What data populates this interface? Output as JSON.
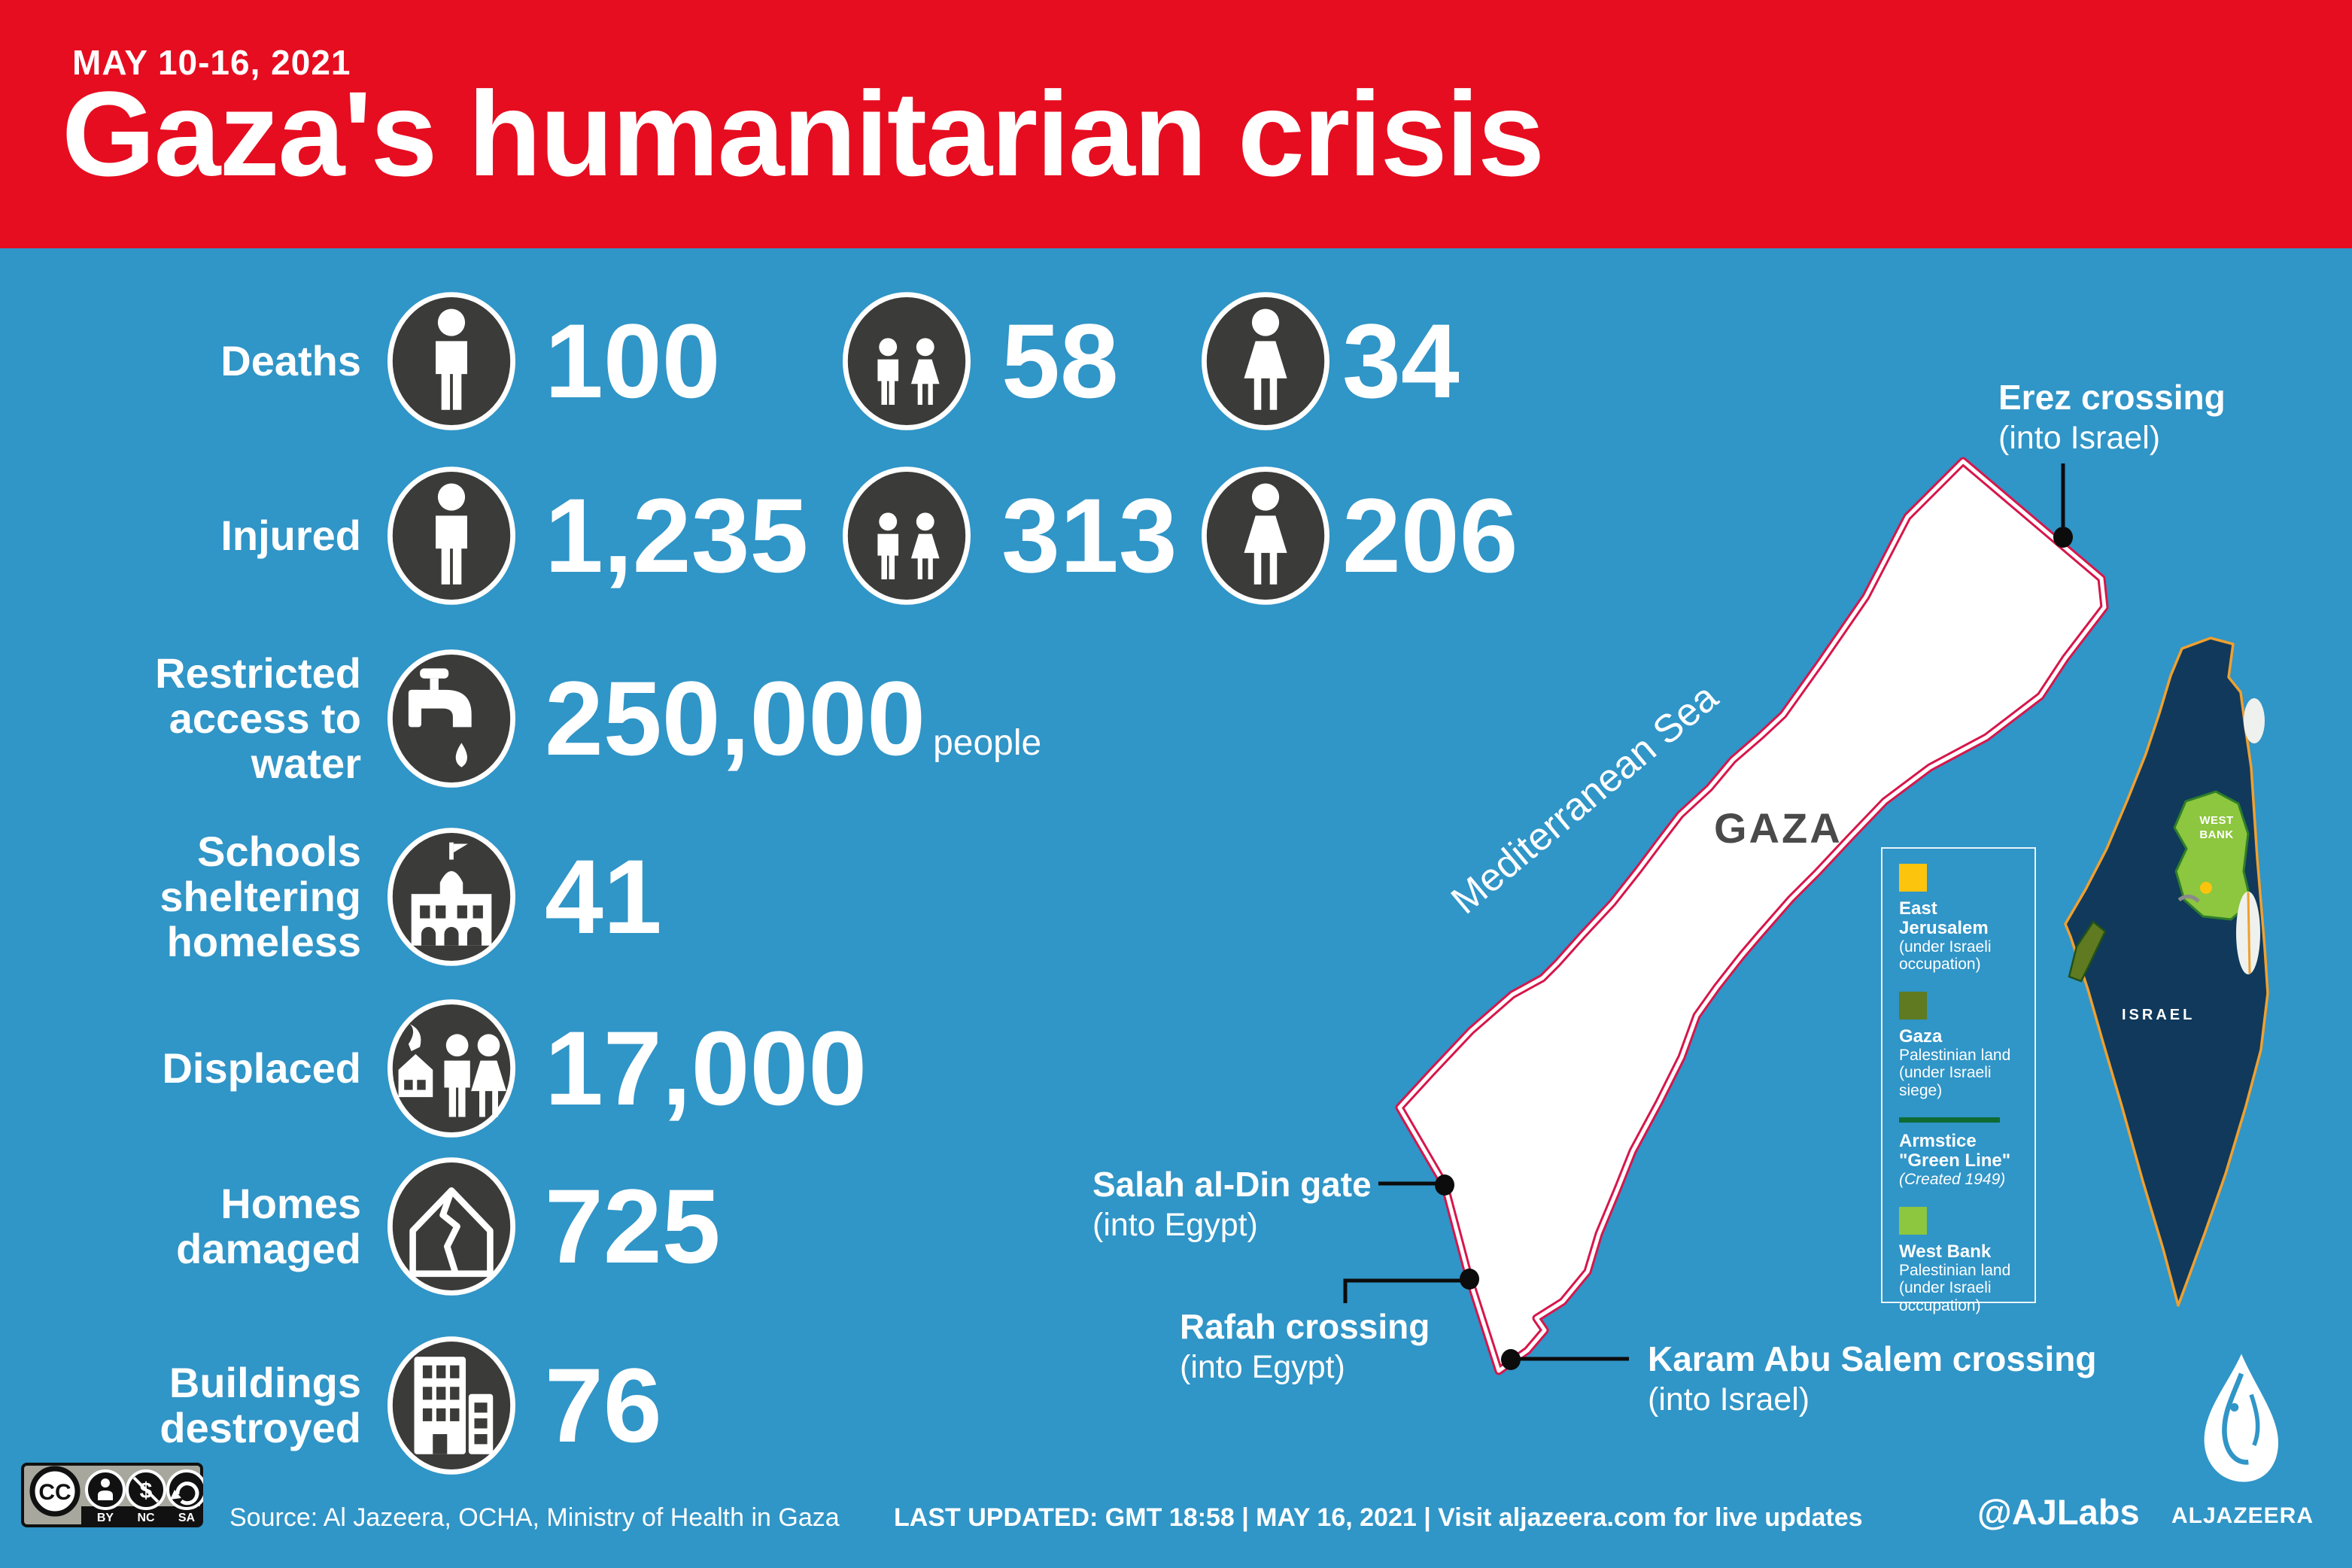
{
  "header": {
    "eyebrow": "MAY 10-16, 2021",
    "title": "Gaza's humanitarian crisis"
  },
  "stats": [
    {
      "label_lines": [
        "Deaths"
      ],
      "cells": [
        {
          "icon": "man-icon",
          "value": "100"
        },
        {
          "icon": "children-icon",
          "value": "58"
        },
        {
          "icon": "woman-icon",
          "value": "34"
        }
      ]
    },
    {
      "label_lines": [
        "Injured"
      ],
      "cells": [
        {
          "icon": "man-icon",
          "value": "1,235"
        },
        {
          "icon": "children-icon",
          "value": "313"
        },
        {
          "icon": "woman-icon",
          "value": "206"
        }
      ]
    },
    {
      "label_lines": [
        "Restricted",
        "access to",
        "water"
      ],
      "cells": [
        {
          "icon": "faucet-icon",
          "value": "250,000",
          "suffix": "people"
        }
      ]
    },
    {
      "label_lines": [
        "Schools",
        "sheltering",
        "homeless"
      ],
      "cells": [
        {
          "icon": "school-icon",
          "value": "41"
        }
      ]
    },
    {
      "label_lines": [
        "Displaced"
      ],
      "cells": [
        {
          "icon": "displaced-family-icon",
          "value": "17,000"
        }
      ]
    },
    {
      "label_lines": [
        "Homes",
        "damaged"
      ],
      "cells": [
        {
          "icon": "damaged-house-icon",
          "value": "725"
        }
      ]
    },
    {
      "label_lines": [
        "Buildings",
        "destroyed"
      ],
      "cells": [
        {
          "icon": "building-icon",
          "value": "76"
        }
      ]
    }
  ],
  "map": {
    "region_label": "GAZA",
    "sea_label": "Mediterranean Sea",
    "markers": [
      {
        "title": "Erez crossing",
        "sub": "(into Israel)"
      },
      {
        "title": "Salah al-Din gate",
        "sub": "(into Egypt)"
      },
      {
        "title": "Rafah crossing",
        "sub": "(into Egypt)"
      },
      {
        "title": "Karam Abu Salem crossing",
        "sub": "(into Israel)"
      }
    ],
    "legend": [
      {
        "swatch": "square",
        "color": "east_jerusalem",
        "title": "East Jerusalem",
        "desc": "(under Israeli occupation)"
      },
      {
        "swatch": "square",
        "color": "gaza_land",
        "title": "Gaza",
        "desc": "Palestinian land (under Israeli siege)"
      },
      {
        "swatch": "line",
        "color": "green_line",
        "title": "Armstice \"Green Line\"",
        "desc": "(Created 1949)",
        "italic": true
      },
      {
        "swatch": "square",
        "color": "west_bank",
        "title": "West Bank",
        "desc": "Palestinian land (under Israeli occupation)"
      }
    ],
    "minimap": {
      "israel": "ISRAEL",
      "west_bank": "WEST BANK"
    }
  },
  "footer": {
    "cc_labels": [
      "BY",
      "NC",
      "SA"
    ],
    "cc_logo": "CC",
    "source": "Source: Al Jazeera, OCHA, Ministry of Health in Gaza",
    "last_updated": "LAST UPDATED: GMT 18:58  |  MAY 16, 2021  |  Visit aljazeera.com for live updates",
    "handle": "@AJLabs",
    "brand": "ALJAZEERA"
  },
  "colors": {
    "background": "#3095c7",
    "banner": "#e60d20",
    "circle": "#3b3b39",
    "strip_border": "#d6164b",
    "navy": "#10395c",
    "orange": "#efa02f",
    "west_bank": "#8dc63f",
    "west_bank_border": "#2e7d2a",
    "gaza_land": "#5f7a20",
    "gaza_land_border": "#20511b",
    "green_line": "#0e6b33",
    "east_jerusalem": "#fdc40d",
    "gaza_label": "#4a4a4a",
    "dot": "#0c0c0c",
    "sea_fill": "#eef1ee"
  }
}
